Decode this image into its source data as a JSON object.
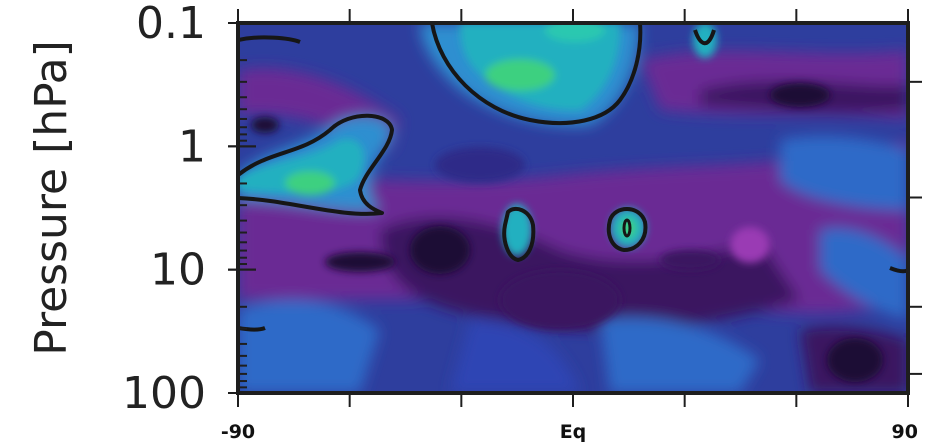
{
  "chart_data": {
    "type": "heatmap",
    "title": "",
    "ylabel": "Pressure [hPa]",
    "xlabel": "",
    "x_range": [
      -90,
      90
    ],
    "y_range": [
      0.1,
      100
    ],
    "y_scale": "log",
    "y_inverted": true,
    "x_tick_labels": [
      {
        "value": -90,
        "label": "-90"
      },
      {
        "value": 0,
        "label": "Eq"
      },
      {
        "value": 90,
        "label": "90"
      }
    ],
    "x_minor_ticks": [
      -60,
      -30,
      30,
      60
    ],
    "y_tick_labels": [
      {
        "value": 0.1,
        "label": "0.1"
      },
      {
        "value": 1,
        "label": "1"
      },
      {
        "value": 10,
        "label": "10"
      },
      {
        "value": 100,
        "label": "100"
      }
    ],
    "right_ticks": [
      0.3,
      2.6,
      20,
      70
    ],
    "colors": {
      "darkest": "#1a0a35",
      "dark_purple": "#3a1660",
      "purple": "#6a2a94",
      "magenta": "#9a3ab4",
      "indigo": "#2e2a88",
      "blue": "#2f44b4",
      "mid_blue": "#2f6ac8",
      "light_blue": "#2f8fd0",
      "teal": "#23b0c0",
      "cyan": "#2ac8b0",
      "green": "#3ed080",
      "contour": "#161616",
      "frame": "#1e1e1e"
    },
    "grid": false,
    "legend": "none"
  }
}
